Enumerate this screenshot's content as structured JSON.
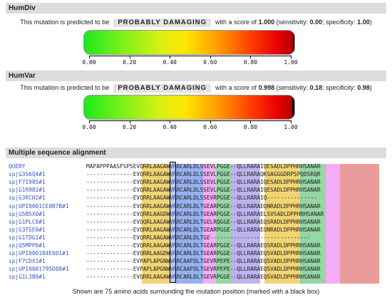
{
  "humdiv": {
    "title": "HumDiv",
    "prefix": "This mutation is predicted to be",
    "prediction": "PROBABLY DAMAGING",
    "score_text": "with a score of",
    "score": "1.000",
    "sens_text": "(sensitivity:",
    "sensitivity": "0.00",
    "spec_text": "; specificity:",
    "specificity": "1.00",
    "close": ")",
    "gauge_value": 1.0
  },
  "humvar": {
    "title": "HumVar",
    "prefix": "This mutation is predicted to be",
    "prediction": "PROBABLY DAMAGING",
    "score_text": "with a score of",
    "score": "0.998",
    "sens_text": "(sensitivity:",
    "sensitivity": "0.18",
    "spec_text": "; specificity:",
    "specificity": "0.98",
    "close": ")",
    "gauge_value": 0.998
  },
  "ticks": [
    "0.00",
    "0.20",
    "0.40",
    "0.60",
    "0.80",
    "1.00"
  ],
  "msa": {
    "title": "Multiple sequence alignment",
    "rows": [
      {
        "name": "QUERY",
        "seq": "MAPAPPPAASFSPSEVQRRLAAGAWVRRCARLDLSSEVLPGGE--QLLRARAIQESADLDPPHRHSANAR"
      },
      {
        "name": "sp|G3S6Q4#1",
        "seq": "--------------EVQRRLAAGAWVRRCARLDLSSEVLPGGE--QLLRARAQKSAGGGDRPSPQDSRQR"
      },
      {
        "name": "sp|F7I985#1",
        "seq": "--------------EVQRRLAAGAWVRRCARLDLSSEVLPGGE--QLLRARAIQESADLDPPHRHSANAR"
      },
      {
        "name": "sp|G1R982#1",
        "seq": "--------------EVQRRLAAGAWVRRCARLDLSSEVLPGGE--QLLRARAIQESADLDPPHRHSANAR"
      },
      {
        "name": "sp|G3RCH2#1",
        "seq": "--------------EVQRRLAAGAWVRRCARLDLSSEVRPGGE--QLLRARAIQ---------------"
      },
      {
        "name": "sp|UPI0001CE0B7B#1",
        "seq": "--------------EVQRRLAAGAWVRRCARLDLTGEARPGGE--QLLRARAEQNRADLDPPHRHSANAR"
      },
      {
        "name": "sp|G5B5X0#1",
        "seq": "--------------EVQRRLAAGDWVRRCARLDLTGEARPGGE--QLLRARAELSVSADLDPPHRHSANAR"
      },
      {
        "name": "sp|G1PLC8#1",
        "seq": "--------------EVQQRLAAGAWVRRCARLDLTGELRQGGE--QLLRARAEQSRADLDPPHRHSANAR"
      },
      {
        "name": "sp|G3TSE0#1",
        "seq": "--------------EVQRRLAAGAWVRRCARLDLTGEARPGGE--QLLRARAEQNRADLDPPHRHSANAR"
      },
      {
        "name": "sp|G1TDG1#1",
        "seq": "--------------EVQRRLAAGAWVRRCARLDLTGE------------------------------"
      },
      {
        "name": "sp|Q5MPP0#1",
        "seq": "--------------EVQRRLAAGAWVRRCARLDLTGEARPGGE--QLLRARAEQSRADLDPPHRHSANAR"
      },
      {
        "name": "sp|UPI000184E601#1",
        "seq": "--------------EVQRRLAAGDWVRRCARLDLTGEARPGGE--QLLRARAEQSVADLDPPHRHSANAR"
      },
      {
        "name": "sp|F7CDX1#1",
        "seq": "--------------EVPAPLAPGNWVRRCAAFDLTGEVRPEPE--QLLRARAEQSVADLDPPHRHSANAR"
      },
      {
        "name": "sp|UPI0001795D88#1",
        "seq": "--------------EVPAPLAPGNWVRRCAAFDLTGEVRPEPE--QLLRARAEQSVADLDPPHRHSANAR"
      },
      {
        "name": "sp|G1L3B9#1",
        "seq": "--------------EVQRRLAAGAWVRRCARLDLTGEVRPGGE--QLLRARAEQSVADLDPPHRHSANAR"
      }
    ],
    "footnote": "Shown are 75 amino acids surrounding the mutation position (marked with a black box)"
  }
}
